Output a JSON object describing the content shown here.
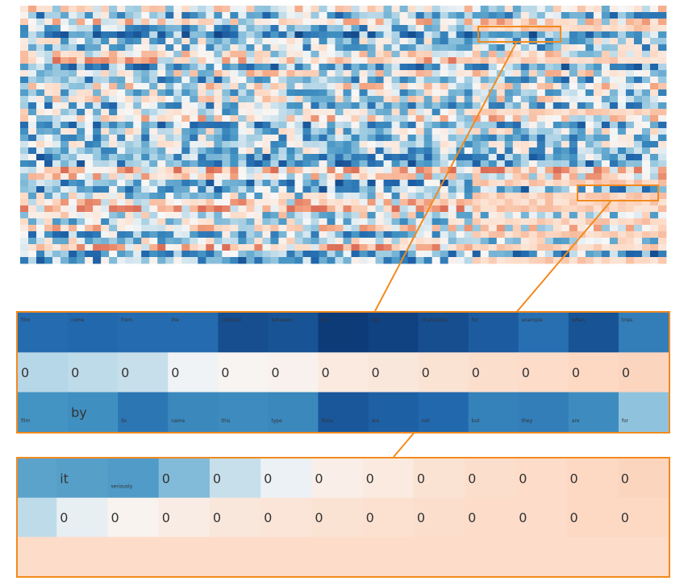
{
  "chart_data": {
    "type": "heatmap",
    "colormap": "RdBu_r",
    "heatmap_grid": {
      "rows": 40,
      "cols": 80,
      "text_tokens_visible": false
    },
    "highlight_color": "#f28a1e",
    "zoom_panels": [
      {
        "name": "zoom-1",
        "rows": [
          {
            "tokens": [
              "film",
              "come",
              "from",
              "the",
              "contrast",
              "between",
              "the",
              "two",
              "characters",
              "for",
              "example",
              "when",
              "tries"
            ],
            "values": [
              -0.72,
              -0.74,
              -0.72,
              -0.72,
              -0.86,
              -0.84,
              -0.95,
              -0.92,
              -0.86,
              -0.8,
              -0.7,
              -0.84,
              -0.62
            ],
            "size": "small"
          },
          {
            "tokens": [
              "0",
              "0",
              "0",
              "0",
              "0",
              "0",
              "0",
              "0",
              "0",
              "0",
              "0",
              "0",
              "0"
            ],
            "values": [
              -0.16,
              -0.14,
              -0.12,
              -0.02,
              0.03,
              0.05,
              0.12,
              0.14,
              0.18,
              0.22,
              0.24,
              0.26,
              0.28
            ],
            "size": "large"
          },
          {
            "tokens": [
              "film",
              "by",
              "its",
              "name",
              "this",
              "type",
              "films",
              "are",
              "not",
              "but",
              "they",
              "are",
              "for"
            ],
            "values": [
              -0.5,
              -0.52,
              -0.66,
              -0.56,
              -0.54,
              -0.56,
              -0.82,
              -0.78,
              -0.74,
              -0.6,
              -0.62,
              -0.54,
              -0.26
            ],
            "size": "mixed",
            "large_indices": [
              1
            ]
          }
        ]
      },
      {
        "name": "zoom-2",
        "rows": [
          {
            "tokens": [
              "",
              "it",
              "seriously",
              "0",
              "0",
              "0",
              "0",
              "0",
              "0",
              "0",
              "0",
              "0",
              "0"
            ],
            "values": [
              -0.42,
              -0.44,
              -0.46,
              -0.3,
              -0.12,
              -0.03,
              0.08,
              0.12,
              0.18,
              0.22,
              0.24,
              0.26,
              0.28
            ],
            "size": "mixed",
            "small_indices": [
              2
            ]
          },
          {
            "tokens": [
              "",
              "0",
              "0",
              "0",
              "0",
              "0",
              "0",
              "0",
              "0",
              "0",
              "0",
              "0",
              "0"
            ],
            "values": [
              -0.14,
              -0.04,
              0.04,
              0.1,
              0.14,
              0.16,
              0.18,
              0.2,
              0.22,
              0.24,
              0.24,
              0.26,
              0.26
            ],
            "size": "large"
          },
          {
            "tokens": [
              "",
              "",
              "",
              "",
              "",
              "",
              "",
              "",
              "",
              "",
              "",
              "",
              ""
            ],
            "values": [
              0.24,
              0.24,
              0.24,
              0.24,
              0.24,
              0.24,
              0.24,
              0.24,
              0.24,
              0.24,
              0.24,
              0.24,
              0.24
            ],
            "size": "none"
          }
        ]
      }
    ]
  }
}
